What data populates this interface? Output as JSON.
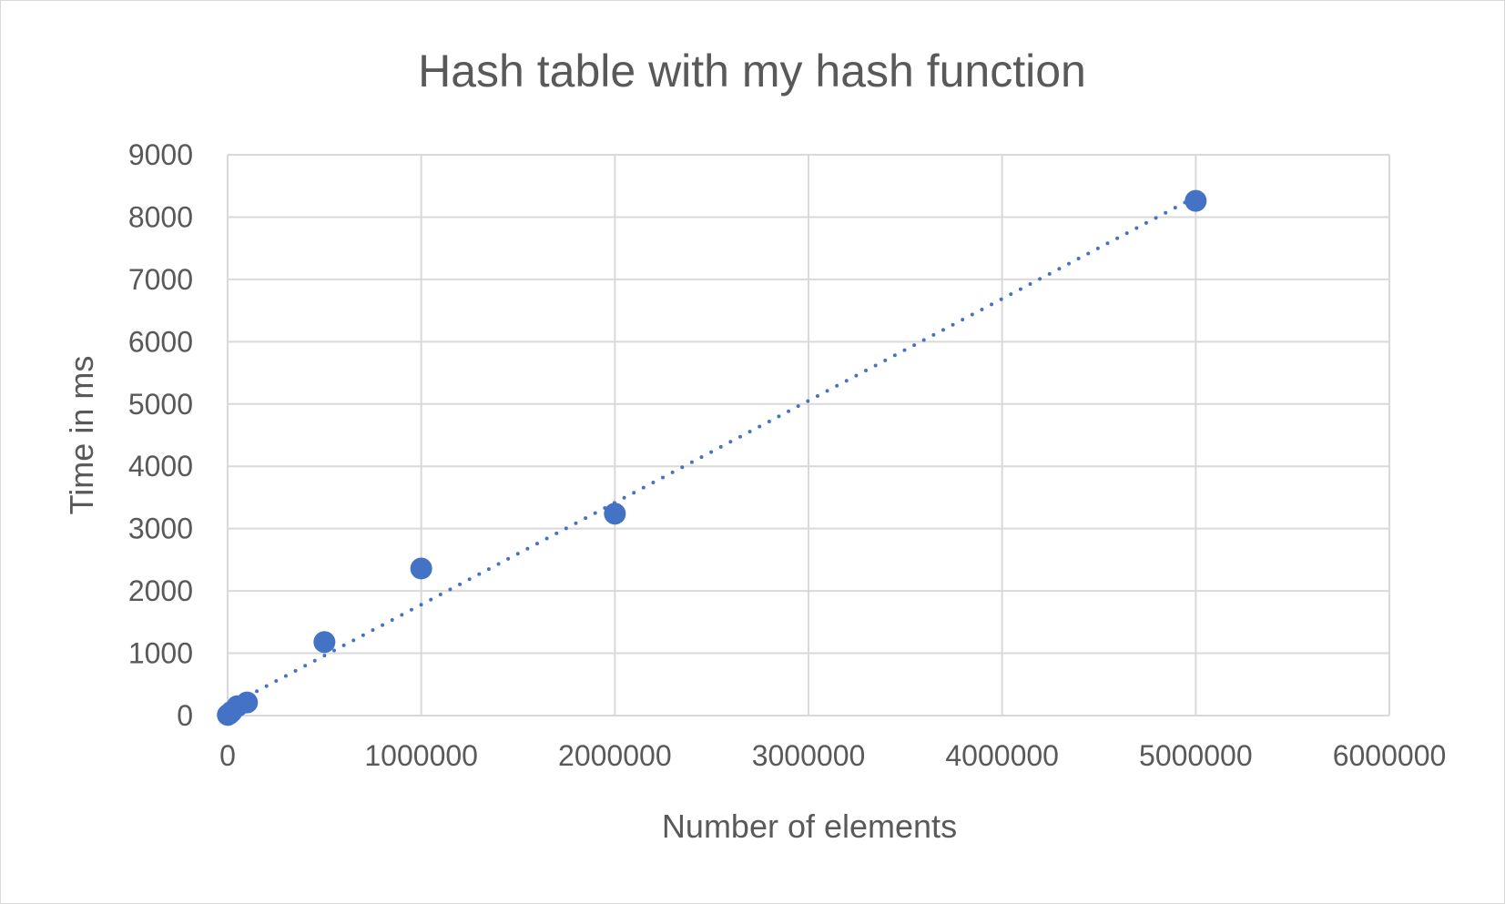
{
  "chart_data": {
    "type": "scatter",
    "title": "Hash table with my hash function",
    "xlabel": "Number of elements",
    "ylabel": "Time in ms",
    "xlim": [
      0,
      6000000
    ],
    "ylim": [
      0,
      9000
    ],
    "xticks": [
      0,
      1000000,
      2000000,
      3000000,
      4000000,
      5000000,
      6000000
    ],
    "yticks": [
      0,
      1000,
      2000,
      3000,
      4000,
      5000,
      6000,
      7000,
      8000,
      9000
    ],
    "grid": true,
    "legend": "none",
    "series": [
      {
        "color": "#4472c4",
        "x": [
          1000,
          10000,
          20000,
          50000,
          100000,
          500000,
          1000000,
          2000000,
          5000000
        ],
        "y": [
          10,
          30,
          60,
          150,
          210,
          1180,
          2360,
          3240,
          8260
        ]
      }
    ],
    "trendline": {
      "type": "linear",
      "style": "dotted",
      "color": "#4472c4"
    }
  }
}
